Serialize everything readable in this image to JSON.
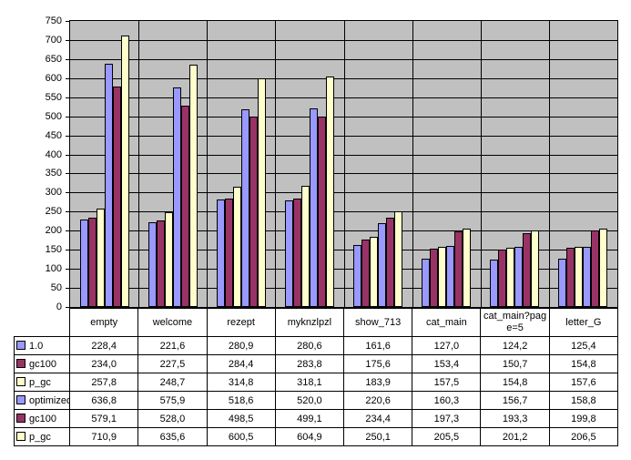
{
  "chart_data": {
    "type": "bar",
    "title": "",
    "xlabel": "",
    "ylabel": "",
    "ylim": [
      0,
      750
    ],
    "ytick_step": 50,
    "grid": true,
    "plot_bg": "#C0C0C0",
    "gridline_color": "#000000",
    "legend_position": "data-table-left-column",
    "decimal_separator": ",",
    "categories": [
      "empty",
      "welcome",
      "rezept",
      "myknzlpzl",
      "show_713",
      "cat_main",
      "cat_main?page=5",
      "letter_G"
    ],
    "series": [
      {
        "name": "1.0",
        "color": "#9999FF",
        "values": [
          228.4,
          221.6,
          280.9,
          280.6,
          161.6,
          127.0,
          124.2,
          125.4
        ]
      },
      {
        "name": "gc100",
        "color": "#993366",
        "values": [
          234.0,
          227.5,
          284.4,
          283.8,
          175.6,
          153.4,
          150.7,
          154.8
        ]
      },
      {
        "name": "p_gc",
        "color": "#FFFFCC",
        "values": [
          257.8,
          248.7,
          314.8,
          318.1,
          183.9,
          157.5,
          154.8,
          157.6
        ]
      },
      {
        "name": "optimized",
        "color": "#9999FF",
        "values": [
          636.8,
          575.9,
          518.6,
          520.0,
          220.6,
          160.3,
          156.7,
          158.8
        ]
      },
      {
        "name": "gc100",
        "color": "#993366",
        "values": [
          579.1,
          528.0,
          498.5,
          499.1,
          234.4,
          197.3,
          193.3,
          199.8
        ]
      },
      {
        "name": "p_gc",
        "color": "#FFFFCC",
        "values": [
          710.9,
          635.6,
          600.5,
          604.9,
          250.1,
          205.5,
          201.2,
          206.5
        ]
      }
    ]
  }
}
